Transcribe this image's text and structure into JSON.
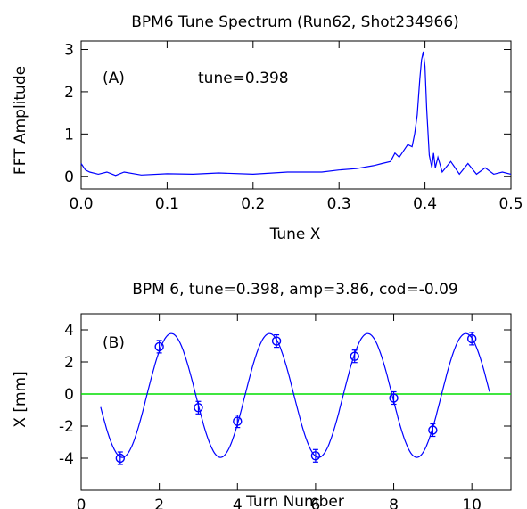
{
  "chart_data": [
    {
      "type": "line",
      "title": "BPM6 Tune Spectrum (Run62, Shot234966)",
      "xlabel": "Tune X",
      "ylabel": "FFT Amplitude",
      "panel_label": "(A)",
      "annotation": "tune=0.398",
      "xlim": [
        0.0,
        0.5
      ],
      "ylim": [
        -0.3,
        3.2
      ],
      "xticks": [
        "0.0",
        "0.1",
        "0.2",
        "0.3",
        "0.4",
        "0.5"
      ],
      "yticks": [
        "0",
        "1",
        "2",
        "3"
      ],
      "grid": false,
      "line_color": "#0000ff",
      "series": [
        {
          "x": [
            0.0,
            0.005,
            0.01,
            0.02,
            0.03,
            0.04,
            0.05,
            0.07,
            0.1,
            0.13,
            0.16,
            0.2,
            0.24,
            0.28,
            0.3,
            0.32,
            0.34,
            0.35,
            0.36,
            0.365,
            0.37,
            0.375,
            0.38,
            0.385,
            0.388,
            0.391,
            0.394,
            0.396,
            0.398,
            0.4,
            0.402,
            0.405,
            0.408,
            0.41,
            0.412,
            0.415,
            0.42,
            0.43,
            0.44,
            0.45,
            0.46,
            0.47,
            0.48,
            0.49,
            0.5
          ],
          "y": [
            0.3,
            0.15,
            0.1,
            0.05,
            0.1,
            0.02,
            0.1,
            0.03,
            0.06,
            0.05,
            0.08,
            0.05,
            0.1,
            0.1,
            0.15,
            0.18,
            0.25,
            0.3,
            0.35,
            0.55,
            0.45,
            0.6,
            0.75,
            0.7,
            1.0,
            1.45,
            2.3,
            2.75,
            2.95,
            2.6,
            1.6,
            0.5,
            0.2,
            0.55,
            0.2,
            0.45,
            0.1,
            0.35,
            0.05,
            0.3,
            0.05,
            0.2,
            0.05,
            0.1,
            0.05
          ]
        }
      ]
    },
    {
      "type": "scatter",
      "title": "BPM 6, tune=0.398, amp=3.86, cod=-0.09",
      "xlabel": "Turn Number",
      "ylabel": "X [mm]",
      "panel_label": "(B)",
      "xlim": [
        0,
        11
      ],
      "ylim": [
        -6,
        5
      ],
      "xticks": [
        "0",
        "2",
        "4",
        "6",
        "8",
        "10"
      ],
      "yticks": [
        "-4",
        "-2",
        "0",
        "2",
        "4"
      ],
      "grid": false,
      "fit": {
        "tune": 0.398,
        "amp": 3.86,
        "cod": -0.09,
        "x_range": [
          0.5,
          10.45
        ],
        "line_color": "#0000ff"
      },
      "zero_line_color": "#00dd00",
      "marker_color": "#0000ff",
      "points": {
        "x": [
          1,
          2,
          3,
          4,
          5,
          6,
          7,
          8,
          9,
          10
        ],
        "y": [
          -4.0,
          2.95,
          -0.85,
          -1.7,
          3.3,
          -3.85,
          2.35,
          -0.25,
          -2.25,
          3.45
        ]
      }
    }
  ]
}
